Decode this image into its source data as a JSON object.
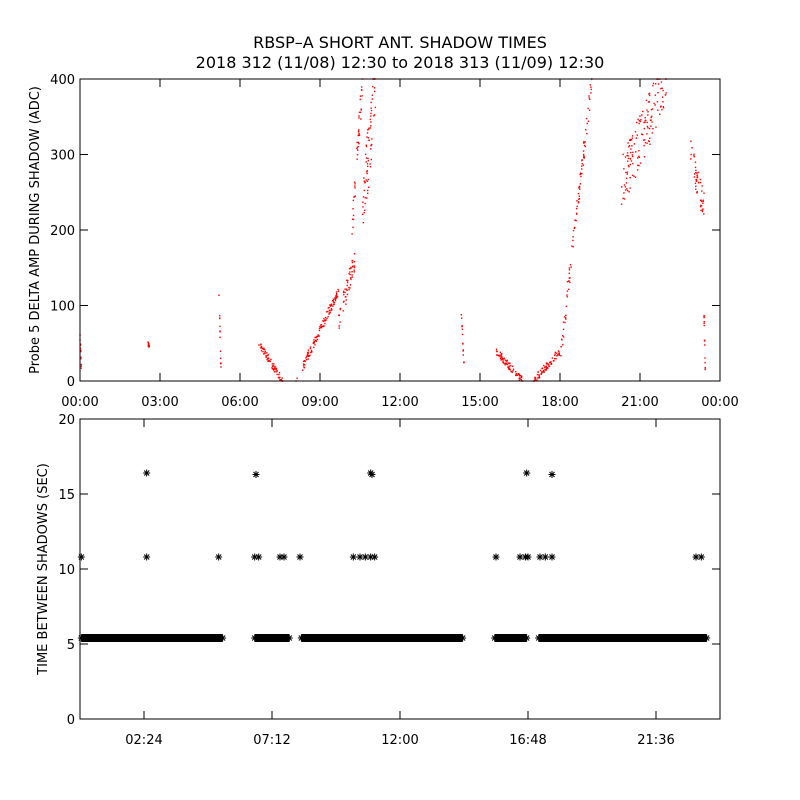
{
  "title": {
    "line1": "RBSP–A SHORT ANT. SHADOW TIMES",
    "line2": "2018 312 (11/08) 12:30 to 2018 313 (11/09) 12:30"
  },
  "colors": {
    "top_points": "#ff0000",
    "bottom_points": "#000000",
    "axes": "#000000"
  },
  "chart_data": [
    {
      "type": "scatter",
      "ylabel": "Probe 5 DELTA AMP DURING SHADOW (ADC)",
      "xlim": [
        0,
        24
      ],
      "ylim": [
        0,
        400
      ],
      "x_unit": "hours",
      "xtick_labels": [
        "00:00",
        "03:00",
        "06:00",
        "09:00",
        "12:00",
        "15:00",
        "18:00",
        "21:00",
        "00:00"
      ],
      "xticks": [
        0,
        3,
        6,
        9,
        12,
        15,
        18,
        21,
        24
      ],
      "ytick_labels": [
        "0",
        "100",
        "200",
        "300",
        "400"
      ],
      "yticks": [
        0,
        100,
        200,
        300,
        400
      ],
      "series": [
        {
          "marker": "dot",
          "color": "#ff0000",
          "features": [
            {
              "x0": 0.0,
              "x1": 0.05,
              "y0": 60,
              "y1": 20,
              "spread": 10
            },
            {
              "x0": 2.55,
              "x1": 2.6,
              "y0": 50,
              "y1": 45,
              "spread": 5
            },
            {
              "x0": 5.2,
              "x1": 5.3,
              "y0": 130,
              "y1": 0,
              "spread": 10
            },
            {
              "x0": 6.7,
              "x1": 7.6,
              "y0": 50,
              "y1": 0,
              "spread": 10
            },
            {
              "x0": 8.1,
              "x1": 9.7,
              "y0": 0,
              "y1": 120,
              "spread": 12
            },
            {
              "x0": 9.7,
              "x1": 10.3,
              "y0": 80,
              "y1": 160,
              "spread": 30
            },
            {
              "x0": 10.2,
              "x1": 10.6,
              "y0": 200,
              "y1": 400,
              "spread": 40
            },
            {
              "x0": 10.6,
              "x1": 11.1,
              "y0": 220,
              "y1": 400,
              "spread": 90
            },
            {
              "x0": 14.3,
              "x1": 14.4,
              "y0": 90,
              "y1": 20,
              "spread": 8
            },
            {
              "x0": 15.6,
              "x1": 16.6,
              "y0": 40,
              "y1": 0,
              "spread": 10
            },
            {
              "x0": 17.0,
              "x1": 18.0,
              "y0": 0,
              "y1": 40,
              "spread": 10
            },
            {
              "x0": 18.0,
              "x1": 19.2,
              "y0": 30,
              "y1": 400,
              "spread": 30
            },
            {
              "x0": 20.3,
              "x1": 22.0,
              "y0": 260,
              "y1": 400,
              "spread": 70
            },
            {
              "x0": 22.9,
              "x1": 23.4,
              "y0": 300,
              "y1": 230,
              "spread": 40
            },
            {
              "x0": 23.4,
              "x1": 23.45,
              "y0": 90,
              "y1": 10,
              "spread": 10
            }
          ]
        }
      ]
    },
    {
      "type": "scatter",
      "ylabel": "TIME BETWEEN SHADOWS (SEC)",
      "xlim": [
        0,
        24
      ],
      "ylim": [
        0,
        20
      ],
      "x_unit": "hours",
      "xtick_labels": [
        "02:24",
        "07:12",
        "12:00",
        "16:48",
        "21:36"
      ],
      "xticks": [
        2.4,
        7.2,
        12.0,
        16.8,
        21.6
      ],
      "ytick_labels": [
        "0",
        "5",
        "10",
        "15",
        "20"
      ],
      "yticks": [
        0,
        5,
        10,
        15,
        20
      ],
      "series": [
        {
          "marker": "asterisk",
          "color": "#000000",
          "baseline_value": 5.4,
          "baseline_segments": [
            [
              0.05,
              5.35
            ],
            [
              6.55,
              7.85
            ],
            [
              8.3,
              14.35
            ],
            [
              15.55,
              16.75
            ],
            [
              17.2,
              23.5
            ]
          ],
          "points": [
            {
              "x": 0.05,
              "y": 10.8
            },
            {
              "x": 2.5,
              "y": 16.4
            },
            {
              "x": 2.5,
              "y": 10.8
            },
            {
              "x": 5.2,
              "y": 10.8
            },
            {
              "x": 6.6,
              "y": 16.3
            },
            {
              "x": 6.55,
              "y": 10.8
            },
            {
              "x": 6.7,
              "y": 10.8
            },
            {
              "x": 7.5,
              "y": 10.8
            },
            {
              "x": 7.65,
              "y": 10.8
            },
            {
              "x": 8.25,
              "y": 10.8
            },
            {
              "x": 10.25,
              "y": 10.8
            },
            {
              "x": 10.5,
              "y": 10.8
            },
            {
              "x": 10.7,
              "y": 10.8
            },
            {
              "x": 10.9,
              "y": 16.4
            },
            {
              "x": 10.95,
              "y": 16.3
            },
            {
              "x": 10.9,
              "y": 10.8
            },
            {
              "x": 11.05,
              "y": 10.8
            },
            {
              "x": 15.6,
              "y": 10.8
            },
            {
              "x": 16.5,
              "y": 10.8
            },
            {
              "x": 16.7,
              "y": 10.8
            },
            {
              "x": 16.75,
              "y": 16.4
            },
            {
              "x": 16.8,
              "y": 10.8
            },
            {
              "x": 17.25,
              "y": 10.8
            },
            {
              "x": 17.45,
              "y": 10.8
            },
            {
              "x": 17.7,
              "y": 16.3
            },
            {
              "x": 17.7,
              "y": 10.8
            },
            {
              "x": 23.1,
              "y": 10.8
            },
            {
              "x": 23.3,
              "y": 10.8
            }
          ]
        }
      ]
    }
  ]
}
